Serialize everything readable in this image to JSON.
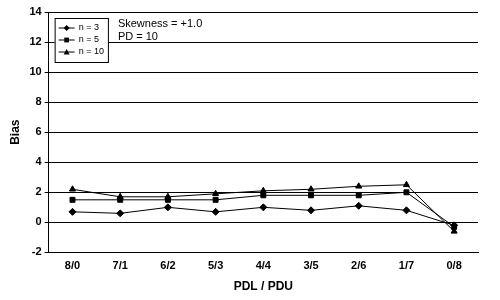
{
  "chart_data": {
    "type": "line",
    "x_label": "PDL / PDU",
    "y_label": "Bias",
    "annotations": [
      "Skewness = +1.0",
      "PD = 10"
    ],
    "categories": [
      "8/0",
      "7/1",
      "6/2",
      "5/3",
      "4/4",
      "3/5",
      "2/6",
      "1/7",
      "0/8"
    ],
    "series": [
      {
        "name": "n = 3",
        "color": "#000000",
        "marker": "diamond",
        "values": [
          0.7,
          0.6,
          1.0,
          0.7,
          1.0,
          0.8,
          1.1,
          0.8,
          -0.2
        ]
      },
      {
        "name": "n = 5",
        "color": "#000000",
        "marker": "square",
        "values": [
          1.5,
          1.5,
          1.5,
          1.5,
          1.8,
          1.8,
          1.8,
          2.0,
          -0.3
        ]
      },
      {
        "name": "n = 10",
        "color": "#000000",
        "marker": "triangle",
        "values": [
          2.2,
          1.7,
          1.7,
          1.9,
          2.1,
          2.2,
          2.4,
          2.5,
          -0.6
        ]
      }
    ],
    "ylim": [
      -2,
      14
    ],
    "yticks": [
      -2,
      0,
      2,
      4,
      6,
      8,
      10,
      12,
      14
    ],
    "grid": true,
    "legend": "upper left"
  }
}
